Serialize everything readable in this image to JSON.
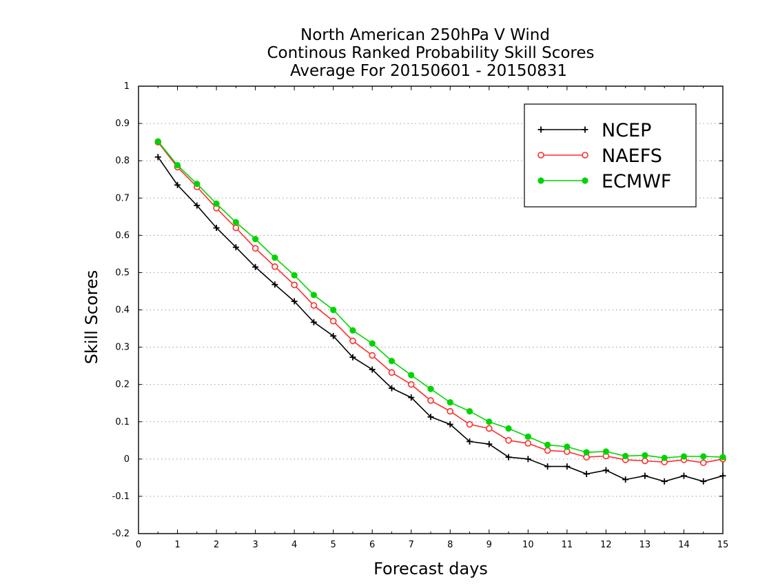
{
  "chart_data": {
    "type": "line",
    "title": [
      "North American 250hPa V Wind",
      "Continous Ranked Probability Skill Scores",
      "Average For 20150601 - 20150831"
    ],
    "xlabel": "Forecast days",
    "ylabel": "Skill Scores",
    "xlim": [
      0,
      15
    ],
    "ylim": [
      -0.2,
      1
    ],
    "x_ticks": [
      "0",
      "1",
      "2",
      "3",
      "4",
      "5",
      "6",
      "7",
      "8",
      "9",
      "10",
      "11",
      "12",
      "13",
      "14",
      "15"
    ],
    "y_ticks": [
      "-0.2",
      "-0.1",
      "0",
      "0.1",
      "0.2",
      "0.3",
      "0.4",
      "0.5",
      "0.6",
      "0.7",
      "0.8",
      "0.9",
      "1"
    ],
    "grid": "horizontal dotted",
    "legend_position": "top-right",
    "x": [
      0.5,
      1,
      1.5,
      2,
      2.5,
      3,
      3.5,
      4,
      4.5,
      5,
      5.5,
      6,
      6.5,
      7,
      7.5,
      8,
      8.5,
      9,
      9.5,
      10,
      10.5,
      11,
      11.5,
      12,
      12.5,
      13,
      13.5,
      14,
      14.5,
      15
    ],
    "series": [
      {
        "name": "NCEP",
        "color": "#000000",
        "marker": "plus",
        "values": [
          0.81,
          0.735,
          0.68,
          0.62,
          0.568,
          0.515,
          0.468,
          0.423,
          0.367,
          0.33,
          0.273,
          0.24,
          0.19,
          0.165,
          0.113,
          0.093,
          0.047,
          0.04,
          0.005,
          0.0,
          -0.02,
          -0.02,
          -0.04,
          -0.03,
          -0.055,
          -0.045,
          -0.06,
          -0.045,
          -0.06,
          -0.045
        ]
      },
      {
        "name": "NAEFS",
        "color": "#ff2a2a",
        "marker": "open-circle",
        "values": [
          0.85,
          0.783,
          0.73,
          0.673,
          0.62,
          0.565,
          0.516,
          0.467,
          0.412,
          0.37,
          0.317,
          0.278,
          0.232,
          0.2,
          0.157,
          0.128,
          0.093,
          0.082,
          0.05,
          0.042,
          0.023,
          0.02,
          0.005,
          0.008,
          -0.002,
          -0.005,
          -0.008,
          -0.002,
          -0.01,
          0.0
        ]
      },
      {
        "name": "ECMWF",
        "color": "#00d400",
        "marker": "filled-circle",
        "values": [
          0.852,
          0.788,
          0.738,
          0.685,
          0.635,
          0.59,
          0.54,
          0.493,
          0.44,
          0.4,
          0.345,
          0.31,
          0.263,
          0.225,
          0.188,
          0.152,
          0.128,
          0.1,
          0.082,
          0.06,
          0.038,
          0.033,
          0.018,
          0.02,
          0.008,
          0.01,
          0.003,
          0.007,
          0.007,
          0.005
        ]
      }
    ]
  }
}
